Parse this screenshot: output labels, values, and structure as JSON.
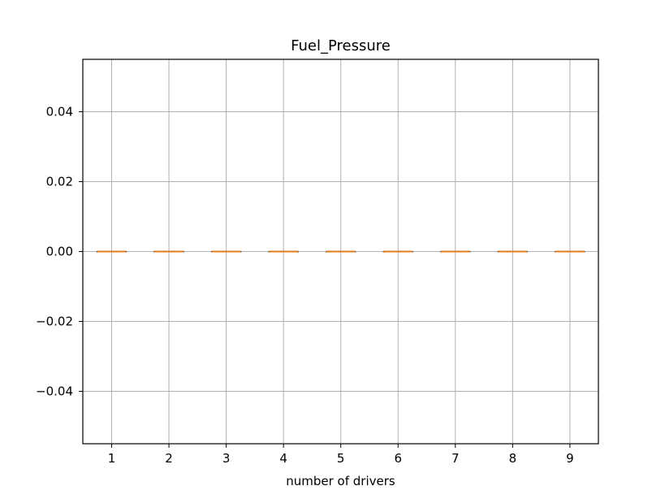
{
  "chart_data": {
    "type": "box",
    "title": "Fuel_Pressure",
    "xlabel": "number of drivers",
    "ylabel": "",
    "categories": [
      "1",
      "2",
      "3",
      "4",
      "5",
      "6",
      "7",
      "8",
      "9"
    ],
    "boxes": [
      {
        "category": "1",
        "min": 0,
        "q1": 0,
        "median": 0,
        "q3": 0,
        "max": 0
      },
      {
        "category": "2",
        "min": 0,
        "q1": 0,
        "median": 0,
        "q3": 0,
        "max": 0
      },
      {
        "category": "3",
        "min": 0,
        "q1": 0,
        "median": 0,
        "q3": 0,
        "max": 0
      },
      {
        "category": "4",
        "min": 0,
        "q1": 0,
        "median": 0,
        "q3": 0,
        "max": 0
      },
      {
        "category": "5",
        "min": 0,
        "q1": 0,
        "median": 0,
        "q3": 0,
        "max": 0
      },
      {
        "category": "6",
        "min": 0,
        "q1": 0,
        "median": 0,
        "q3": 0,
        "max": 0
      },
      {
        "category": "7",
        "min": 0,
        "q1": 0,
        "median": 0,
        "q3": 0,
        "max": 0
      },
      {
        "category": "8",
        "min": 0,
        "q1": 0,
        "median": 0,
        "q3": 0,
        "max": 0
      },
      {
        "category": "9",
        "min": 0,
        "q1": 0,
        "median": 0,
        "q3": 0,
        "max": 0
      }
    ],
    "ylim": [
      -0.055,
      0.055
    ],
    "yticks": [
      -0.04,
      -0.02,
      0.0,
      0.02,
      0.04
    ],
    "ytick_labels": [
      "−0.04",
      "−0.02",
      "0.00",
      "0.02",
      "0.04"
    ],
    "grid": true,
    "colors": {
      "median": "#e07b1f",
      "grid": "#b0b0b0",
      "axis": "#000000"
    }
  }
}
